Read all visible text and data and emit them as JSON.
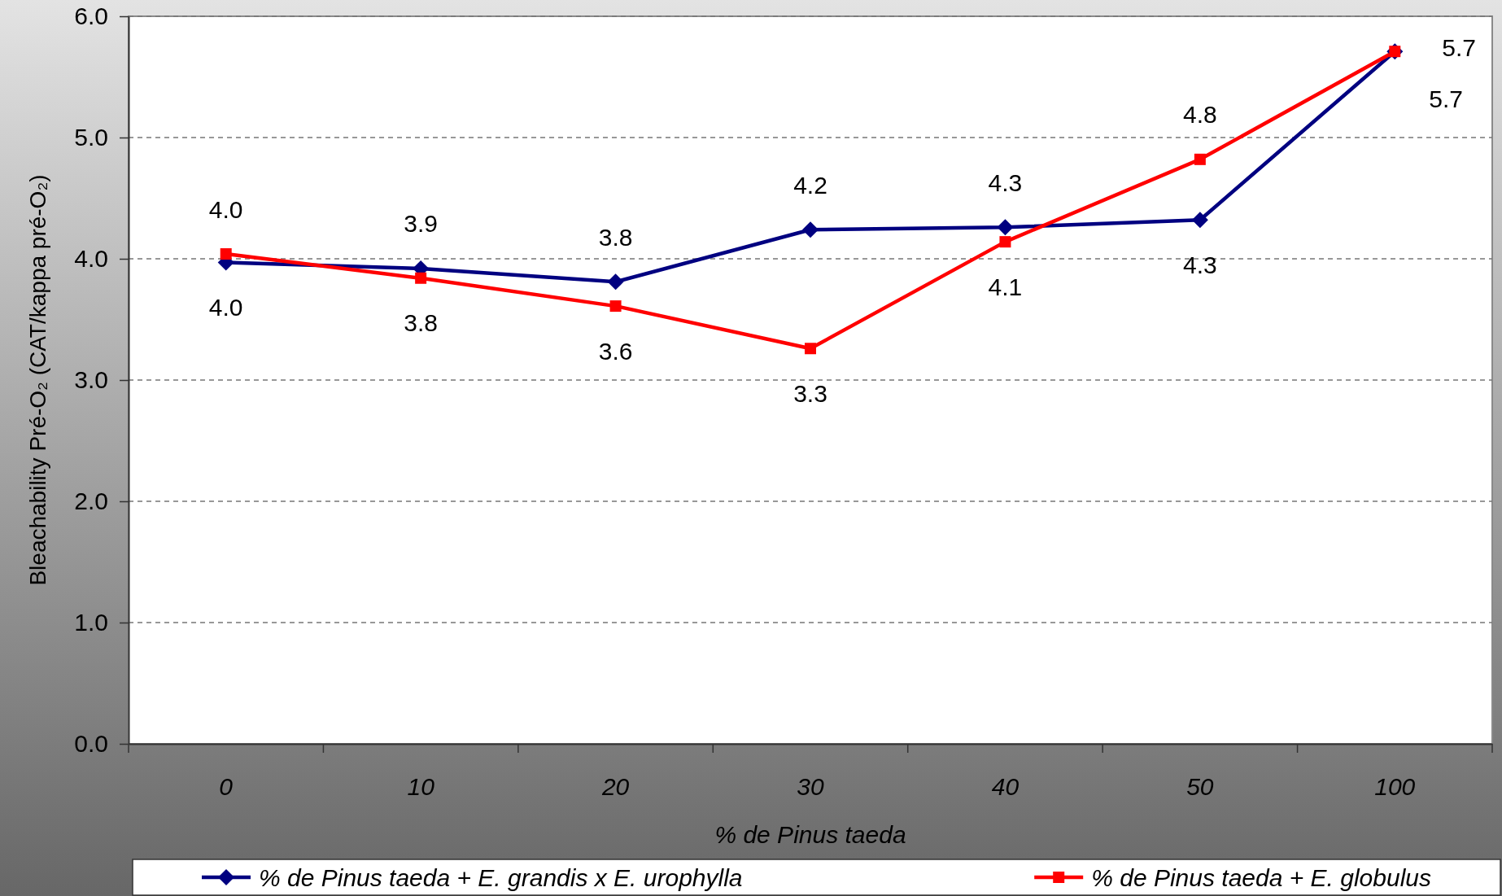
{
  "chart_data": {
    "type": "line",
    "xlabel": "% de Pinus taeda",
    "ylabel": "Bleachability Pré-O₂ (CAT/kappa pré-O₂)",
    "categories": [
      "0",
      "10",
      "20",
      "30",
      "40",
      "50",
      "100"
    ],
    "ylim": [
      0,
      6
    ],
    "yticks": [
      {
        "value": 0,
        "label": "0.0"
      },
      {
        "value": 1,
        "label": "1.0"
      },
      {
        "value": 2,
        "label": "2.0"
      },
      {
        "value": 3,
        "label": "3.0"
      },
      {
        "value": 4,
        "label": "4.0"
      },
      {
        "value": 5,
        "label": "5.0"
      },
      {
        "value": 6,
        "label": "6.0"
      }
    ],
    "grid": "y",
    "legend": "bottom",
    "line_style": "solid",
    "series": [
      {
        "name": "% de Pinus taeda + E. grandis x E. urophylla",
        "color": "#000080",
        "marker": "diamond",
        "values": [
          3.97,
          3.92,
          3.81,
          4.24,
          4.26,
          4.32,
          5.71
        ],
        "value_labels": [
          "4.0",
          "3.9",
          "3.8",
          "4.2",
          "4.3",
          "4.3",
          "5.7"
        ]
      },
      {
        "name": "% de Pinus taeda + E. globulus",
        "color": "#ff0000",
        "marker": "square",
        "values": [
          4.04,
          3.84,
          3.61,
          3.26,
          4.14,
          4.82,
          5.71
        ],
        "value_labels": [
          "4.0",
          "3.8",
          "3.6",
          "3.3",
          "4.1",
          "4.8",
          "5.7"
        ]
      }
    ]
  }
}
